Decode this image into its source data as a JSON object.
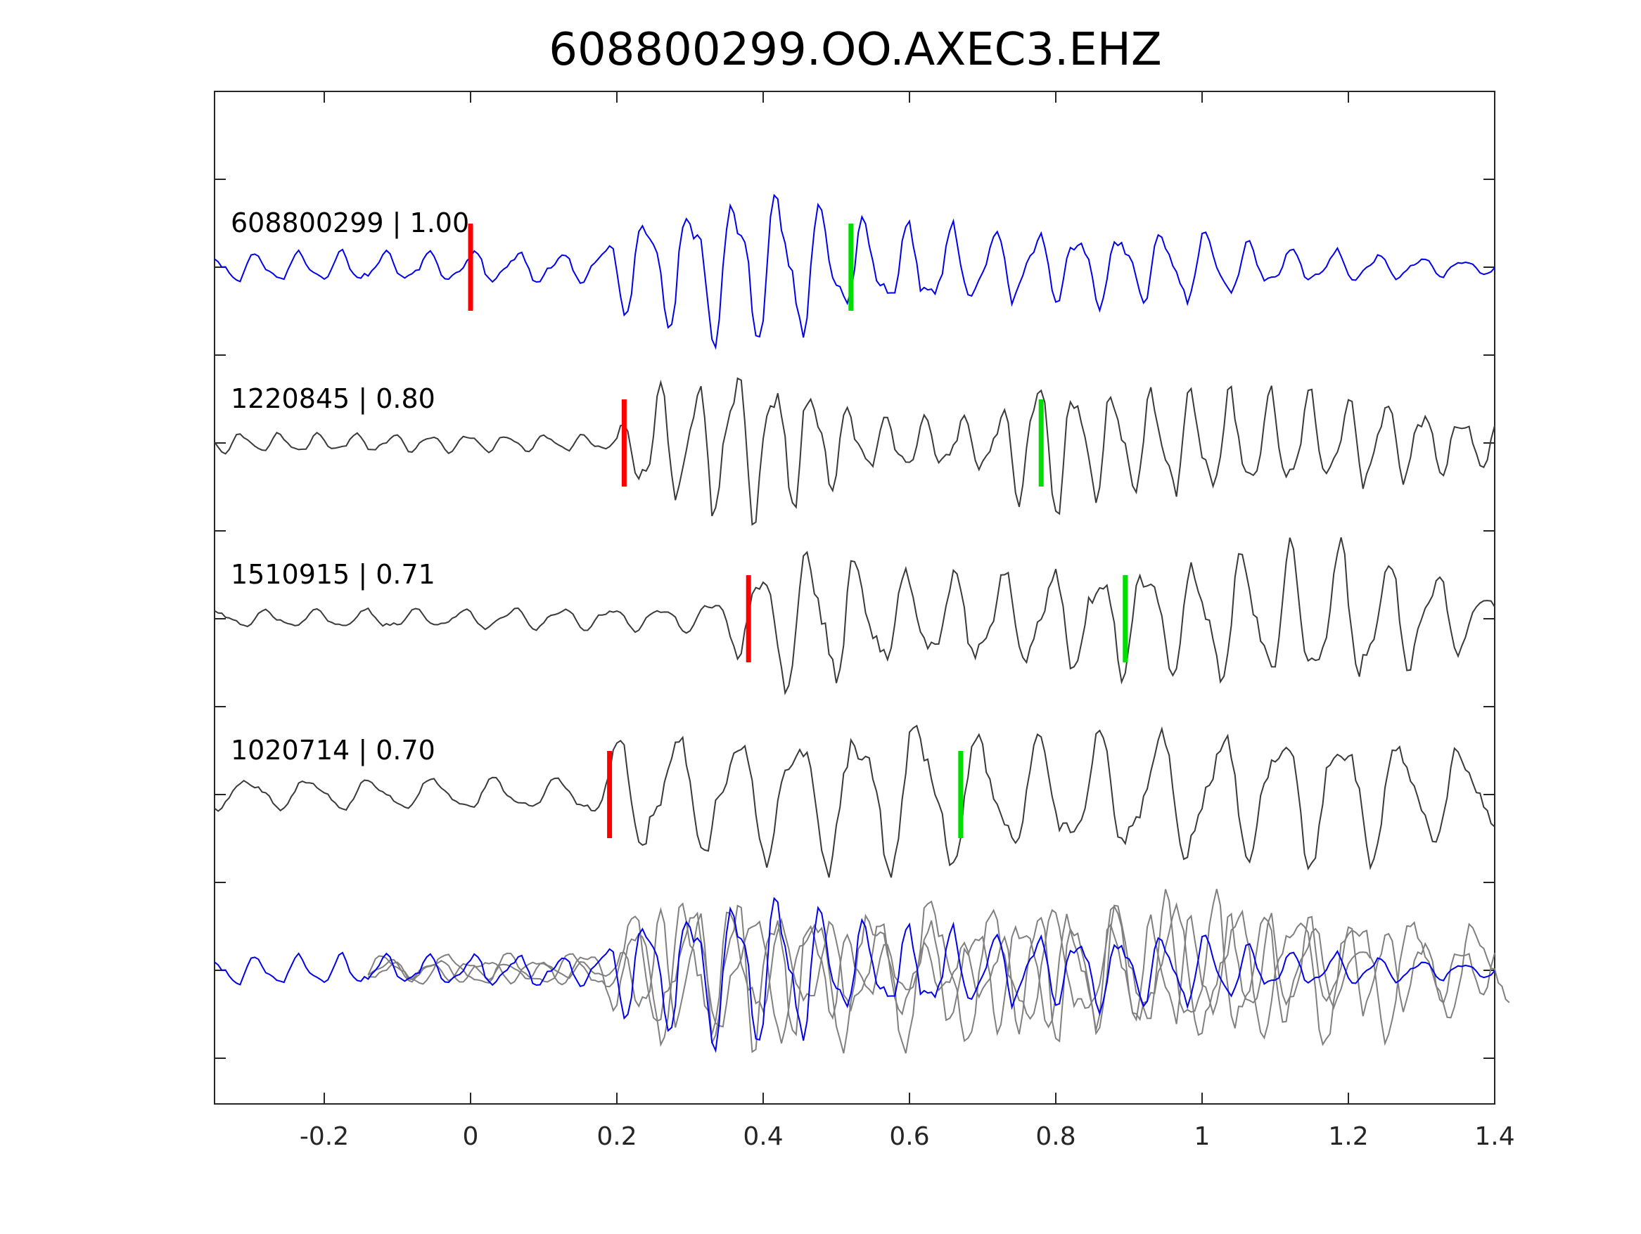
{
  "chart_data": {
    "type": "line",
    "title": "608800299.OO.AXEC3.EHZ",
    "xlabel": "",
    "ylabel": "",
    "xlim": [
      -0.35,
      1.4
    ],
    "x_ticks": [
      -0.2,
      0,
      0.2,
      0.4,
      0.6,
      0.8,
      1,
      1.2,
      1.4
    ],
    "x_tick_labels": [
      "-0.2",
      "0",
      "0.2",
      "0.4",
      "0.6",
      "0.8",
      "1",
      "1.2",
      "1.4"
    ],
    "y_tick_count": 12,
    "grid": false,
    "legend": "none",
    "sample_interval": 0.005,
    "series": [
      {
        "label": "608800299 | 1.00",
        "color": "#0000ee",
        "red_pick_time": 0.0,
        "green_pick_time": 0.52,
        "envelope": [
          [
            -0.35,
            0.18
          ],
          [
            0.17,
            0.2
          ],
          [
            0.22,
            0.7
          ],
          [
            0.42,
            1.0
          ],
          [
            0.52,
            0.55
          ],
          [
            0.8,
            0.45
          ],
          [
            1.0,
            0.45
          ],
          [
            1.1,
            0.25
          ],
          [
            1.4,
            0.08
          ]
        ],
        "carrier_hz": 17,
        "phase_seed": 1.3
      },
      {
        "label": "1220845 | 0.80",
        "color": "#3a3a3a",
        "red_pick_time": 0.21,
        "green_pick_time": 0.78,
        "envelope": [
          [
            -0.35,
            0.12
          ],
          [
            0.2,
            0.1
          ],
          [
            0.24,
            0.75
          ],
          [
            0.4,
            0.95
          ],
          [
            0.55,
            0.35
          ],
          [
            0.72,
            0.35
          ],
          [
            0.77,
            1.0
          ],
          [
            0.85,
            0.7
          ],
          [
            1.2,
            0.6
          ],
          [
            1.4,
            0.3
          ]
        ],
        "carrier_hz": 19,
        "phase_seed": 2.7
      },
      {
        "label": "1510915 | 0.71",
        "color": "#3a3a3a",
        "red_pick_time": 0.38,
        "green_pick_time": 0.895,
        "envelope": [
          [
            -0.35,
            0.1
          ],
          [
            0.3,
            0.15
          ],
          [
            0.38,
            0.5
          ],
          [
            0.42,
            1.0
          ],
          [
            0.6,
            0.55
          ],
          [
            0.85,
            0.65
          ],
          [
            1.0,
            0.8
          ],
          [
            1.2,
            0.9
          ],
          [
            1.4,
            0.3
          ]
        ],
        "carrier_hz": 15,
        "phase_seed": 0.6
      },
      {
        "label": "1020714 | 0.70",
        "color": "#3a3a3a",
        "red_pick_time": 0.19,
        "green_pick_time": 0.67,
        "envelope": [
          [
            -0.35,
            0.2
          ],
          [
            0.15,
            0.2
          ],
          [
            0.2,
            0.7
          ],
          [
            0.4,
            0.8
          ],
          [
            0.6,
            1.0
          ],
          [
            0.75,
            0.7
          ],
          [
            1.0,
            0.8
          ],
          [
            1.2,
            0.85
          ],
          [
            1.4,
            0.5
          ]
        ],
        "carrier_hz": 12,
        "phase_seed": 4.1
      }
    ]
  }
}
